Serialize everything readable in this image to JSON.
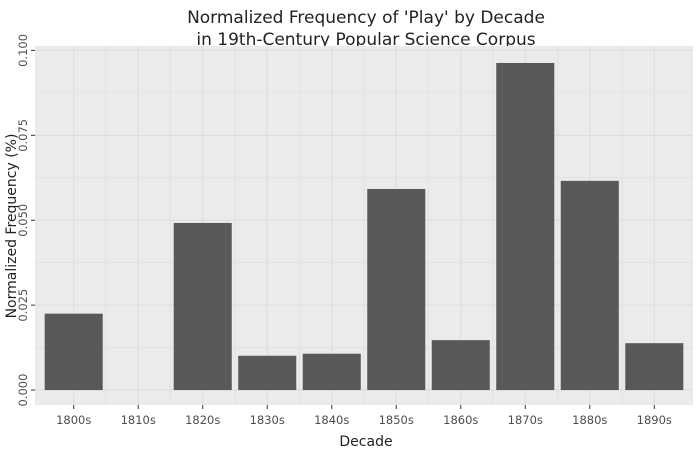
{
  "chart_data": {
    "type": "bar",
    "title_lines": [
      "Normalized Frequency of 'Play' by Decade",
      "in 19th-Century Popular Science Corpus"
    ],
    "xlabel": "Decade",
    "ylabel": "Normalized Frequency (%)",
    "categories": [
      "1800s",
      "1810s",
      "1820s",
      "1830s",
      "1840s",
      "1850s",
      "1860s",
      "1870s",
      "1880s",
      "1890s"
    ],
    "values": [
      0.0225,
      0,
      0.0492,
      0.0101,
      0.0107,
      0.0592,
      0.0147,
      0.0963,
      0.0616,
      0.0138
    ],
    "ylim": [
      -0.0044,
      0.1013
    ],
    "yticks": [
      0,
      0.025,
      0.05,
      0.075,
      0.1
    ],
    "ytick_labels": [
      "0.000",
      "0.025",
      "0.050",
      "0.075",
      "0.100"
    ],
    "grid": true,
    "legend": "none",
    "colors": {
      "bar": "#595959",
      "panel_background": "#ebebeb",
      "grid": "#dcdcdc"
    }
  }
}
